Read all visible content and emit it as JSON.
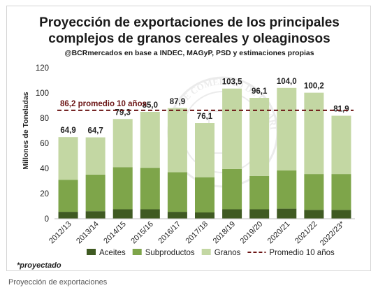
{
  "chart_data": {
    "type": "bar",
    "stacked": true,
    "title_line1": "Proyección de exportaciones de los principales",
    "title_line2": "complejos de granos cereales y oleaginosos",
    "subtitle": "@BCRmercados en base a INDEC, MAGyP, PSD y estimaciones propias",
    "ylabel": "Millones de Toneladas",
    "xlabel": "",
    "ylim": [
      0,
      120
    ],
    "yticks": [
      "0",
      "20",
      "40",
      "60",
      "80",
      "100",
      "120"
    ],
    "categories": [
      "2012/13",
      "2013/14",
      "2014/15",
      "2015/16",
      "2016/17",
      "2017/18",
      "2018/19",
      "2019/20",
      "2020/21",
      "2021/22",
      "2022/23*"
    ],
    "series": [
      {
        "name": "Aceites",
        "color": "#3f5a22",
        "values": [
          5.5,
          6,
          7.5,
          7.5,
          5.5,
          5,
          7.5,
          7.5,
          8,
          7,
          7
        ]
      },
      {
        "name": "Subproductos",
        "color": "#7ea54a",
        "values": [
          25.5,
          29,
          33.5,
          33,
          31.5,
          28,
          32,
          26.5,
          30.5,
          28.5,
          28.5
        ]
      },
      {
        "name": "Granos",
        "color": "#c3d7a3",
        "values": [
          33.9,
          29.7,
          38.3,
          44.5,
          50.9,
          43.1,
          64,
          62.1,
          65.5,
          64.7,
          46.4
        ]
      }
    ],
    "total_labels": [
      "64,9",
      "64,7",
      "79,3",
      "85,0",
      "87,9",
      "76,1",
      "103,5",
      "96,1",
      "104,0",
      "100,2",
      "81,9"
    ],
    "average": {
      "value": 86.2,
      "label": "86,2 promedio 10 años",
      "legend": "Promedio 10 años",
      "color": "#6b1414"
    },
    "legend_position": "bottom",
    "grid": false,
    "watermark_text": "BOLSA DE COMERCIO DE ROSARIO",
    "footnote": "*proyectado"
  },
  "caption": "Proyección de exportaciones"
}
